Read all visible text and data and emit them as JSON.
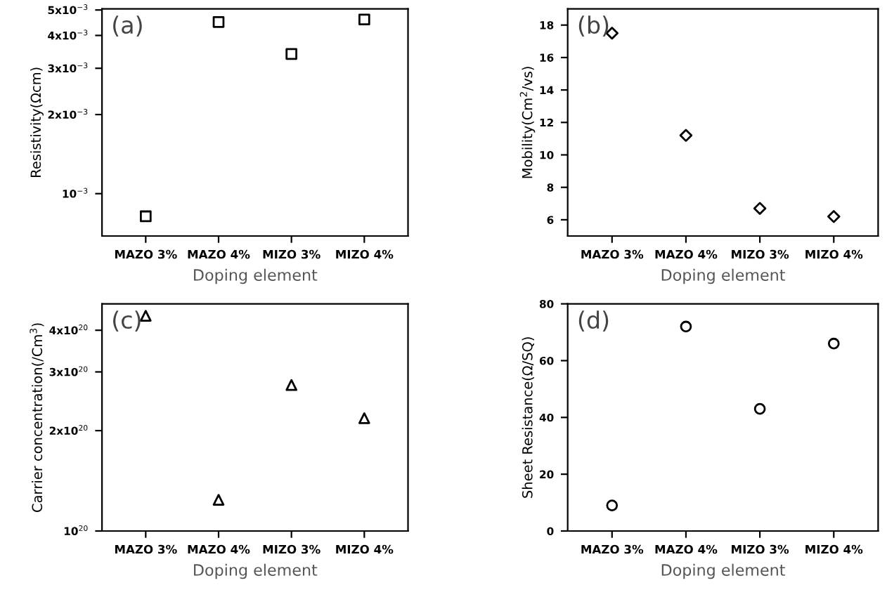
{
  "chart_data": [
    {
      "type": "scatter",
      "annotations": [
        "(a)"
      ],
      "xlabel": "Doping element",
      "ylabel": "Resistivity(Ωcm)",
      "categories": [
        "MAZO 3%",
        "MAZO 4%",
        "MIZO 3%",
        "MIZO 4%"
      ],
      "values": [
        0.00082,
        0.0045,
        0.0034,
        0.0046
      ],
      "color": "#000000",
      "marker": "square",
      "log": "y",
      "ylim": [
        0.00069,
        0.00505
      ],
      "yticks": [
        {
          "value": 0.001,
          "label": "10$^{−3}$"
        },
        {
          "value": 0.002,
          "label": "2x10$^{−3}$"
        },
        {
          "value": 0.003,
          "label": "3x10$^{−3}$"
        },
        {
          "value": 0.004,
          "label": "4x10$^{−3}$"
        },
        {
          "value": 0.005,
          "label": "5x10$^{−3}$"
        }
      ],
      "grid": false,
      "legend": false
    },
    {
      "type": "scatter",
      "annotations": [
        "(b)"
      ],
      "xlabel": "Doping element",
      "ylabel": "Mobility(Cm$^{2}$/vs)",
      "categories": [
        "MAZO 3%",
        "MAZO 4%",
        "MIZO 3%",
        "MIZO 4%"
      ],
      "values": [
        17.5,
        11.2,
        6.7,
        6.2
      ],
      "color": "#000000",
      "marker": "diamond",
      "ylim": [
        5,
        19
      ],
      "yticks": [
        6,
        8,
        10,
        12,
        14,
        16,
        18
      ],
      "grid": false,
      "legend": false
    },
    {
      "type": "scatter",
      "annotations": [
        "(c)"
      ],
      "xlabel": "Doping element",
      "ylabel": "Carrier concentration(/Cm$^{3}$)",
      "categories": [
        "MAZO 3%",
        "MAZO 4%",
        "MIZO 3%",
        "MIZO 4%"
      ],
      "values": [
        4.42e+20,
        1.24e+20,
        2.74e+20,
        2.18e+20
      ],
      "color": "#000000",
      "marker": "triangle",
      "log": "y",
      "ylim": [
        1e+20,
        4.8e+20
      ],
      "yticks": [
        {
          "value": 1e+20,
          "label": "10$^{20}$"
        },
        {
          "value": 2e+20,
          "label": "2x10$^{20}$"
        },
        {
          "value": 3e+20,
          "label": "3x10$^{20}$"
        },
        {
          "value": 4e+20,
          "label": "4x10$^{20}$"
        }
      ],
      "grid": false,
      "legend": false
    },
    {
      "type": "scatter",
      "annotations": [
        "(d)"
      ],
      "xlabel": "Doping element",
      "ylabel": "Sheet Resistance(Ω/SQ)",
      "categories": [
        "MAZO 3%",
        "MAZO 4%",
        "MIZO 3%",
        "MIZO 4%"
      ],
      "values": [
        9,
        72,
        43,
        66
      ],
      "color": "#000000",
      "marker": "circle",
      "ylim": [
        0,
        80
      ],
      "yticks": [
        0,
        20,
        40,
        60,
        80
      ],
      "grid": false,
      "legend": false
    }
  ]
}
